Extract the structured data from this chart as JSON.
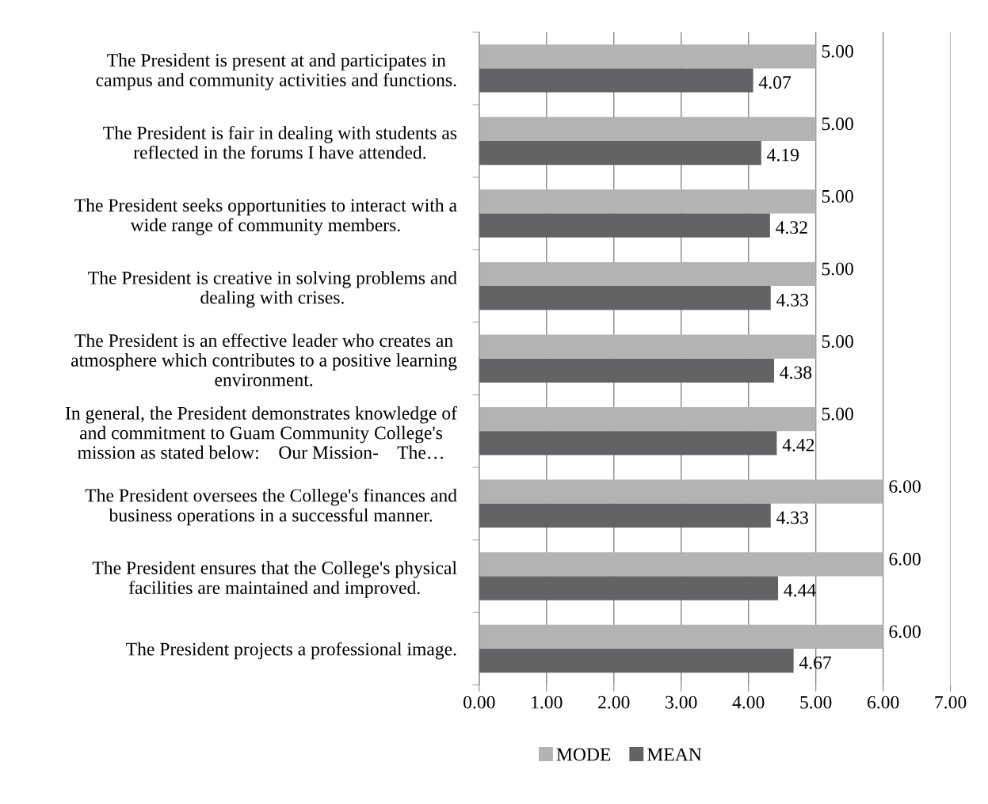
{
  "chart_data": {
    "type": "bar",
    "orientation": "horizontal",
    "categories": [
      "The President is present at and participates in\ncampus and community activities and functions.",
      "The President is fair in dealing with students as\nreflected in the forums I have attended.",
      "The President seeks opportunities to interact with a\nwide range of community members.",
      "The President is creative in solving problems and\ndealing with crises.",
      "The President is an effective leader who creates an\natmosphere which contributes to a positive learning\nenvironment.",
      "In general, the President demonstrates knowledge of\nand commitment to Guam Community College's\nmission as stated below:    Our Mission-    The…",
      "The President oversees the College's finances and\nbusiness operations in a successful manner.",
      "The President ensures that the College's physical\nfacilities are maintained and improved.",
      "The President projects a professional image."
    ],
    "series": [
      {
        "name": "MODE",
        "color": "#b3b3b4",
        "values": [
          5,
          5,
          5,
          5,
          5,
          5,
          6,
          6,
          6
        ],
        "value_labels": [
          "5.00",
          "5.00",
          "5.00",
          "5.00",
          "5.00",
          "5.00",
          "6.00",
          "6.00",
          "6.00"
        ]
      },
      {
        "name": "MEAN",
        "color": "#636365",
        "values": [
          4.07,
          4.19,
          4.32,
          4.33,
          4.38,
          4.42,
          4.33,
          4.44,
          4.67
        ],
        "value_labels": [
          "4.07",
          "4.19",
          "4.32",
          "4.33",
          "4.38",
          "4.42",
          "4.33",
          "4.44",
          "4.67"
        ]
      }
    ],
    "xlim": [
      0,
      7
    ],
    "xticks": [
      {
        "value": 0,
        "label": "0.00"
      },
      {
        "value": 1,
        "label": "1.00"
      },
      {
        "value": 2,
        "label": "2.00"
      },
      {
        "value": 3,
        "label": "3.00"
      },
      {
        "value": 4,
        "label": "4.00"
      },
      {
        "value": 5,
        "label": "5.00"
      },
      {
        "value": 6,
        "label": "6.00"
      },
      {
        "value": 7,
        "label": "7.00"
      }
    ],
    "grid": "x",
    "legend": "bottom"
  }
}
